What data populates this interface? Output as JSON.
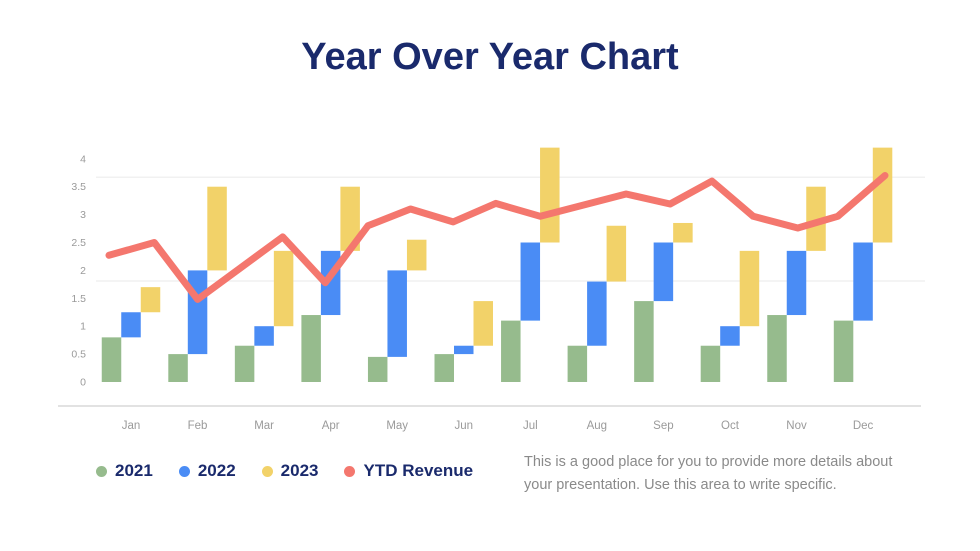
{
  "page": {
    "title": "Year Over Year Chart",
    "title_color": "#1A2A6C",
    "background": "#FFFFFF"
  },
  "legend": {
    "items": [
      {
        "label": "2021",
        "color": "#96BB8D"
      },
      {
        "label": "2022",
        "color": "#4A8CF5"
      },
      {
        "label": "2023",
        "color": "#F2D269"
      },
      {
        "label": "YTD Revenue",
        "color": "#F4776E"
      }
    ]
  },
  "description": {
    "line1": "This is a good place for you to provide more details about",
    "line2": "your presentation. Use this area to write specific."
  },
  "chart_data": {
    "type": "bar",
    "subtype": "floating-range-bars-with-line-overlay",
    "title": "Year Over Year Chart",
    "xlabel": "",
    "ylabel": "",
    "ylim": [
      0,
      4.3
    ],
    "y_ticks": [
      "0",
      "0.5",
      "1",
      "1.5",
      "2",
      "2.5",
      "3",
      "3.5",
      "4"
    ],
    "categories": [
      "Jan",
      "Feb",
      "Mar",
      "Apr",
      "May",
      "Jun",
      "Jul",
      "Aug",
      "Sep",
      "Oct",
      "Nov",
      "Dec"
    ],
    "series": [
      {
        "name": "2021",
        "color": "#96BB8D",
        "ranges": [
          [
            0,
            0.8
          ],
          [
            0,
            0.5
          ],
          [
            0,
            0.65
          ],
          [
            0,
            1.2
          ],
          [
            0,
            0.45
          ],
          [
            0,
            0.5
          ],
          [
            0,
            1.1
          ],
          [
            0,
            0.65
          ],
          [
            0,
            1.45
          ],
          [
            0,
            0.65
          ],
          [
            0,
            1.2
          ],
          [
            0,
            1.1
          ]
        ]
      },
      {
        "name": "2022",
        "color": "#4A8CF5",
        "ranges": [
          [
            0.8,
            1.25
          ],
          [
            0.5,
            2.0
          ],
          [
            0.65,
            1.0
          ],
          [
            1.2,
            2.35
          ],
          [
            0.45,
            2.0
          ],
          [
            0.5,
            0.65
          ],
          [
            1.1,
            2.5
          ],
          [
            0.65,
            1.8
          ],
          [
            1.45,
            2.5
          ],
          [
            0.65,
            1.0
          ],
          [
            1.2,
            2.35
          ],
          [
            1.1,
            2.5
          ]
        ]
      },
      {
        "name": "2023",
        "color": "#F2D269",
        "ranges": [
          [
            1.25,
            1.7
          ],
          [
            2.0,
            3.5
          ],
          [
            1.0,
            2.35
          ],
          [
            2.35,
            3.5
          ],
          [
            2.0,
            2.55
          ],
          [
            0.65,
            1.45
          ],
          [
            2.5,
            4.2
          ],
          [
            1.8,
            2.8
          ],
          [
            2.5,
            2.85
          ],
          [
            1.0,
            2.35
          ],
          [
            2.35,
            3.5
          ],
          [
            2.5,
            4.2
          ]
        ]
      }
    ],
    "line_series": {
      "name": "YTD Revenue",
      "color": "#F4776E",
      "points_month_value": [
        [
          -0.33,
          2.27
        ],
        [
          0.35,
          2.5
        ],
        [
          1.0,
          1.48
        ],
        [
          2.28,
          2.6
        ],
        [
          2.92,
          1.78
        ],
        [
          3.56,
          2.8
        ],
        [
          4.2,
          3.1
        ],
        [
          4.84,
          2.87
        ],
        [
          5.48,
          3.2
        ],
        [
          6.15,
          2.97
        ],
        [
          7.44,
          3.37
        ],
        [
          8.1,
          3.19
        ],
        [
          8.73,
          3.6
        ],
        [
          9.35,
          2.97
        ],
        [
          10.02,
          2.76
        ],
        [
          10.62,
          2.97
        ],
        [
          11.33,
          3.7
        ]
      ]
    },
    "layout": {
      "grid": "two faint horizontal gridlines",
      "gridline_values": [
        3.67,
        1.81
      ],
      "legend_position": "bottom-left",
      "axis_text_color": "#9A9A9A",
      "axis_line_color": "#E2E2E2"
    }
  }
}
